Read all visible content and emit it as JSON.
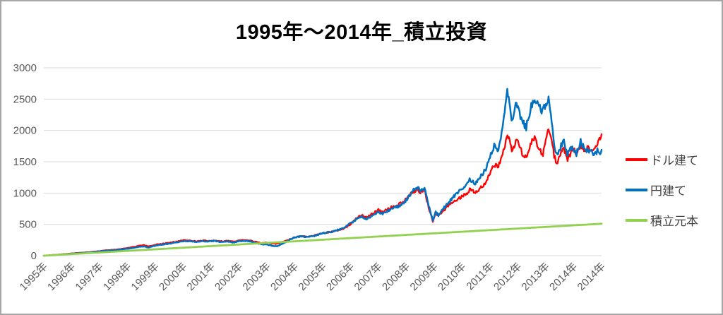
{
  "title": "1995年～2014年_積立投資",
  "frame": {
    "border_color": "#a6a6a6",
    "background": "#ffffff"
  },
  "chart_data": {
    "type": "line",
    "title": "1995年～2014年_積立投資",
    "xlabel": "",
    "ylabel": "",
    "xlim": [
      1995,
      2015
    ],
    "ylim": [
      0,
      3000
    ],
    "y_ticks": [
      0,
      500,
      1000,
      1500,
      2000,
      2500,
      3000
    ],
    "x_tick_step": 1,
    "x_tick_labels": [
      "1995年",
      "1996年",
      "1997年",
      "1998年",
      "1999年",
      "2000年",
      "2001年",
      "2002年",
      "2003年",
      "2004年",
      "2005年",
      "2006年",
      "2007年",
      "2008年",
      "2009年",
      "2010年",
      "2011年",
      "2012年",
      "2013年",
      "2014年",
      "2014年"
    ],
    "grid": "horizontal",
    "gridline_color": "#d9d9d9",
    "axis_label_color": "#595959",
    "legend_position": "right",
    "legend_text_color": "#404040",
    "series": [
      {
        "name": "ドル建て",
        "color": "#ff0000",
        "width": 2.3,
        "jitter": true,
        "points": [
          [
            1995.0,
            0
          ],
          [
            1995.3,
            10
          ],
          [
            1995.6,
            20
          ],
          [
            1996.0,
            36
          ],
          [
            1996.3,
            46
          ],
          [
            1996.6,
            55
          ],
          [
            1997.0,
            74
          ],
          [
            1997.3,
            88
          ],
          [
            1997.6,
            98
          ],
          [
            1998.0,
            122
          ],
          [
            1998.2,
            138
          ],
          [
            1998.45,
            162
          ],
          [
            1998.6,
            168
          ],
          [
            1998.75,
            148
          ],
          [
            1999.0,
            175
          ],
          [
            1999.3,
            195
          ],
          [
            1999.6,
            212
          ],
          [
            1999.8,
            228
          ],
          [
            2000.05,
            252
          ],
          [
            2000.3,
            238
          ],
          [
            2000.5,
            230
          ],
          [
            2000.7,
            242
          ],
          [
            2000.9,
            236
          ],
          [
            2001.1,
            246
          ],
          [
            2001.35,
            228
          ],
          [
            2001.6,
            236
          ],
          [
            2001.8,
            224
          ],
          [
            2002.0,
            242
          ],
          [
            2002.2,
            252
          ],
          [
            2002.4,
            240
          ],
          [
            2002.6,
            222
          ],
          [
            2002.8,
            202
          ],
          [
            2003.0,
            210
          ],
          [
            2003.2,
            192
          ],
          [
            2003.35,
            188
          ],
          [
            2003.6,
            228
          ],
          [
            2003.8,
            258
          ],
          [
            2004.0,
            295
          ],
          [
            2004.2,
            312
          ],
          [
            2004.4,
            302
          ],
          [
            2004.7,
            322
          ],
          [
            2005.0,
            358
          ],
          [
            2005.3,
            378
          ],
          [
            2005.6,
            408
          ],
          [
            2005.8,
            445
          ],
          [
            2006.05,
            520
          ],
          [
            2006.25,
            610
          ],
          [
            2006.4,
            650
          ],
          [
            2006.55,
            605
          ],
          [
            2006.8,
            675
          ],
          [
            2007.0,
            730
          ],
          [
            2007.15,
            698
          ],
          [
            2007.35,
            745
          ],
          [
            2007.6,
            800
          ],
          [
            2007.85,
            850
          ],
          [
            2008.0,
            905
          ],
          [
            2008.2,
            1000
          ],
          [
            2008.35,
            1055
          ],
          [
            2008.5,
            1015
          ],
          [
            2008.65,
            1045
          ],
          [
            2008.8,
            770
          ],
          [
            2008.95,
            545
          ],
          [
            2009.05,
            680
          ],
          [
            2009.15,
            625
          ],
          [
            2009.3,
            710
          ],
          [
            2009.5,
            790
          ],
          [
            2009.7,
            865
          ],
          [
            2009.9,
            915
          ],
          [
            2010.1,
            975
          ],
          [
            2010.3,
            1060
          ],
          [
            2010.45,
            1000
          ],
          [
            2010.65,
            1070
          ],
          [
            2010.85,
            1180
          ],
          [
            2011.0,
            1330
          ],
          [
            2011.15,
            1460
          ],
          [
            2011.3,
            1410
          ],
          [
            2011.45,
            1640
          ],
          [
            2011.6,
            1870
          ],
          [
            2011.68,
            1940
          ],
          [
            2011.78,
            1660
          ],
          [
            2011.9,
            1800
          ],
          [
            2012.0,
            1860
          ],
          [
            2012.15,
            1640
          ],
          [
            2012.3,
            1560
          ],
          [
            2012.45,
            1790
          ],
          [
            2012.6,
            1860
          ],
          [
            2012.75,
            1700
          ],
          [
            2012.9,
            1610
          ],
          [
            2013.0,
            1820
          ],
          [
            2013.1,
            2050
          ],
          [
            2013.18,
            1960
          ],
          [
            2013.3,
            1580
          ],
          [
            2013.42,
            1480
          ],
          [
            2013.55,
            1640
          ],
          [
            2013.65,
            1690
          ],
          [
            2013.78,
            1540
          ],
          [
            2013.9,
            1640
          ],
          [
            2014.0,
            1700
          ],
          [
            2014.1,
            1615
          ],
          [
            2014.25,
            1755
          ],
          [
            2014.4,
            1690
          ],
          [
            2014.55,
            1715
          ],
          [
            2014.7,
            1690
          ],
          [
            2014.85,
            1780
          ],
          [
            2014.95,
            1860
          ],
          [
            2015.0,
            1940
          ]
        ]
      },
      {
        "name": "円建て",
        "color": "#0070c0",
        "width": 2.5,
        "jitter": true,
        "points": [
          [
            1995.0,
            0
          ],
          [
            1995.3,
            9
          ],
          [
            1995.6,
            17
          ],
          [
            1996.0,
            31
          ],
          [
            1996.3,
            41
          ],
          [
            1996.6,
            50
          ],
          [
            1997.0,
            68
          ],
          [
            1997.3,
            80
          ],
          [
            1997.6,
            90
          ],
          [
            1998.0,
            110
          ],
          [
            1998.2,
            125
          ],
          [
            1998.45,
            142
          ],
          [
            1998.6,
            146
          ],
          [
            1998.75,
            130
          ],
          [
            1999.0,
            160
          ],
          [
            1999.3,
            180
          ],
          [
            1999.6,
            198
          ],
          [
            1999.8,
            214
          ],
          [
            2000.05,
            236
          ],
          [
            2000.3,
            225
          ],
          [
            2000.5,
            218
          ],
          [
            2000.7,
            230
          ],
          [
            2000.9,
            224
          ],
          [
            2001.1,
            236
          ],
          [
            2001.35,
            218
          ],
          [
            2001.6,
            226
          ],
          [
            2001.8,
            212
          ],
          [
            2002.0,
            230
          ],
          [
            2002.2,
            238
          ],
          [
            2002.4,
            228
          ],
          [
            2002.6,
            208
          ],
          [
            2002.8,
            182
          ],
          [
            2003.0,
            178
          ],
          [
            2003.2,
            158
          ],
          [
            2003.35,
            148
          ],
          [
            2003.6,
            200
          ],
          [
            2003.8,
            248
          ],
          [
            2004.0,
            292
          ],
          [
            2004.2,
            308
          ],
          [
            2004.4,
            298
          ],
          [
            2004.7,
            316
          ],
          [
            2005.0,
            360
          ],
          [
            2005.3,
            382
          ],
          [
            2005.6,
            418
          ],
          [
            2005.8,
            458
          ],
          [
            2006.05,
            535
          ],
          [
            2006.25,
            590
          ],
          [
            2006.4,
            625
          ],
          [
            2006.55,
            580
          ],
          [
            2006.8,
            645
          ],
          [
            2007.0,
            700
          ],
          [
            2007.15,
            668
          ],
          [
            2007.35,
            718
          ],
          [
            2007.6,
            768
          ],
          [
            2007.85,
            825
          ],
          [
            2008.0,
            885
          ],
          [
            2008.2,
            1020
          ],
          [
            2008.35,
            1100
          ],
          [
            2008.5,
            1045
          ],
          [
            2008.65,
            1075
          ],
          [
            2008.8,
            800
          ],
          [
            2008.95,
            565
          ],
          [
            2009.05,
            700
          ],
          [
            2009.15,
            645
          ],
          [
            2009.3,
            740
          ],
          [
            2009.5,
            835
          ],
          [
            2009.7,
            945
          ],
          [
            2009.9,
            1030
          ],
          [
            2010.1,
            1120
          ],
          [
            2010.3,
            1220
          ],
          [
            2010.45,
            1150
          ],
          [
            2010.65,
            1245
          ],
          [
            2010.85,
            1390
          ],
          [
            2011.0,
            1570
          ],
          [
            2011.15,
            1760
          ],
          [
            2011.3,
            1690
          ],
          [
            2011.45,
            2000
          ],
          [
            2011.55,
            2380
          ],
          [
            2011.62,
            2690
          ],
          [
            2011.72,
            2330
          ],
          [
            2011.8,
            2120
          ],
          [
            2011.9,
            2450
          ],
          [
            2012.0,
            2370
          ],
          [
            2012.15,
            2130
          ],
          [
            2012.3,
            2050
          ],
          [
            2012.45,
            2340
          ],
          [
            2012.6,
            2530
          ],
          [
            2012.7,
            2470
          ],
          [
            2012.85,
            2290
          ],
          [
            2013.0,
            2390
          ],
          [
            2013.1,
            2500
          ],
          [
            2013.18,
            2330
          ],
          [
            2013.3,
            1750
          ],
          [
            2013.42,
            1590
          ],
          [
            2013.55,
            1760
          ],
          [
            2013.65,
            1810
          ],
          [
            2013.78,
            1630
          ],
          [
            2013.9,
            1700
          ],
          [
            2014.0,
            1720
          ],
          [
            2014.1,
            1630
          ],
          [
            2014.25,
            1820
          ],
          [
            2014.4,
            1700
          ],
          [
            2014.55,
            1670
          ],
          [
            2014.7,
            1630
          ],
          [
            2014.85,
            1670
          ],
          [
            2014.95,
            1640
          ],
          [
            2015.0,
            1690
          ]
        ]
      },
      {
        "name": "積立元本",
        "color": "#92d050",
        "width": 2.8,
        "jitter": false,
        "points": [
          [
            1995.0,
            0
          ],
          [
            2015.0,
            510
          ]
        ]
      }
    ],
    "render_hints": {
      "samples_per_year": 36,
      "jitter_pct": 0.028,
      "jitter_min": 2
    }
  }
}
